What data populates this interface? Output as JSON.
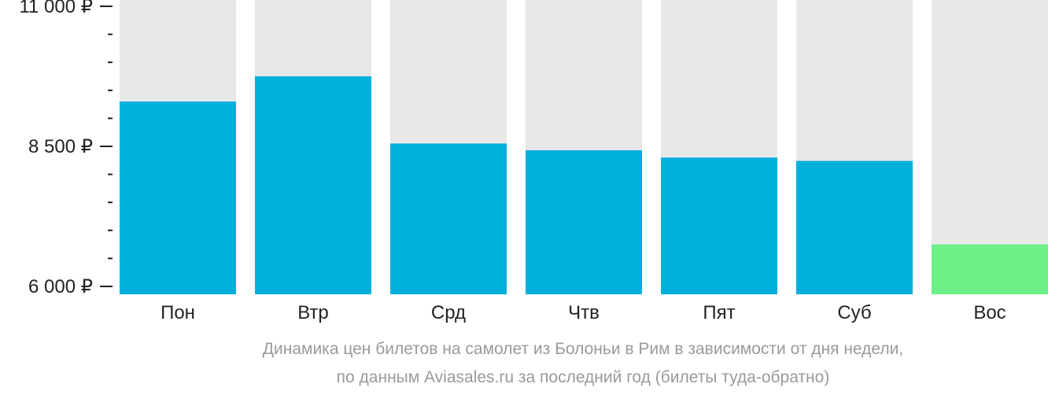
{
  "chart_data": {
    "type": "bar",
    "categories": [
      "Пон",
      "Втр",
      "Срд",
      "Чтв",
      "Пят",
      "Суб",
      "Вос"
    ],
    "values": [
      9300,
      9750,
      8550,
      8430,
      8300,
      8240,
      6750
    ],
    "ylim": [
      6000,
      11000
    ],
    "yticks": [
      {
        "value": 11000,
        "label": "11 000 ₽"
      },
      {
        "value": 8500,
        "label": "8 500 ₽"
      },
      {
        "value": 6000,
        "label": "6 000 ₽"
      }
    ],
    "minor_ticks": [
      10500,
      10000,
      9500,
      9000,
      8000,
      7500,
      7000,
      6500
    ],
    "grid": false,
    "colors": {
      "bar": "#00b0dc",
      "bar_lowest": "#6cf087",
      "background_column": "#e8e8e8",
      "axis_text": "#222222",
      "tick": "#222222"
    }
  },
  "caption": {
    "line1": "Динамика цен билетов на самолет из Болоньи в Рим в зависимости от дня недели,",
    "line2": "по данным Aviasales.ru за последний год (билеты туда-обратно)"
  }
}
